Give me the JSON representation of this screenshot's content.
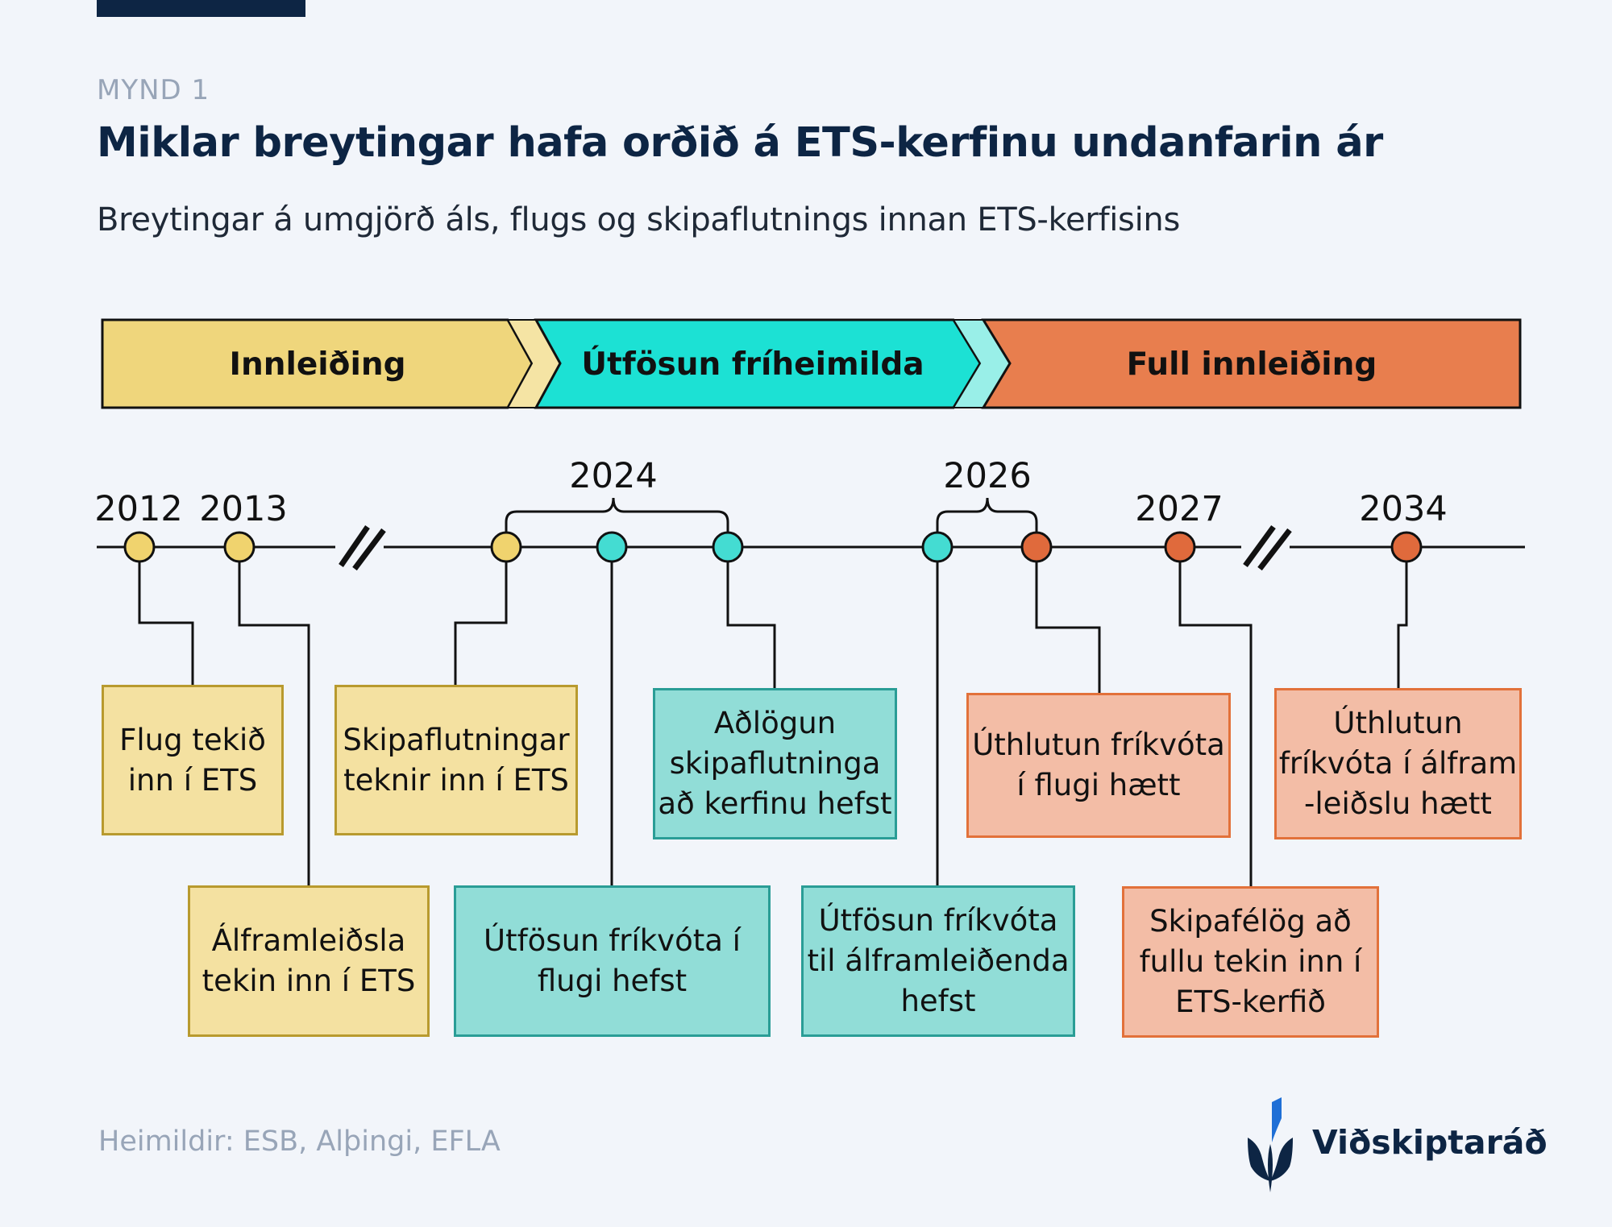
{
  "figure_label": "MYND 1",
  "title": "Miklar breytingar hafa orðið á ETS-kerfinu undanfarin ár",
  "subtitle": "Breytingar á umgjörð áls, flugs og skipaflutnings innan ETS-kerfisins",
  "phases": [
    {
      "label": "Innleiðing",
      "color": "#efd67c"
    },
    {
      "label": "Útfösun fríheimilda",
      "color": "#1ce1d4"
    },
    {
      "label": "Full innleiðing",
      "color": "#e87e4e"
    }
  ],
  "years": [
    "2012",
    "2013",
    "2024",
    "2026",
    "2027",
    "2034"
  ],
  "events": [
    {
      "text": "Flug tekið\ninn í ETS",
      "phase": "Innleiðing",
      "year": "2012"
    },
    {
      "text": "Álframleiðsla\ntekin inn í ETS",
      "phase": "Innleiðing",
      "year": "2013"
    },
    {
      "text": "Skipaflutningar\nteknir inn í ETS",
      "phase": "Innleiðing",
      "year": "2024"
    },
    {
      "text": "Útfösun fríkvóta í\nflugi hefst",
      "phase": "Útfösun fríheimilda",
      "year": "2024"
    },
    {
      "text": "Aðlögun\nskipaflutninga\nað kerfinu hefst",
      "phase": "Útfösun fríheimilda",
      "year": "2024"
    },
    {
      "text": "Útfösun fríkvóta\ntil álframleiðenda\nhefst",
      "phase": "Útfösun fríheimilda",
      "year": "2026"
    },
    {
      "text": "Úthlutun fríkvóta\ní flugi hætt",
      "phase": "Full innleiðing",
      "year": "2026"
    },
    {
      "text": "Skipafélög að\nfullu tekin inn í\nETS-kerfið",
      "phase": "Full innleiðing",
      "year": "2027"
    },
    {
      "text": "Úthlutun\nfríkvóta í álfram\n-leiðslu hætt",
      "phase": "Full innleiðing",
      "year": "2034"
    }
  ],
  "colors": {
    "navy": "#0d2544",
    "yellow_dot": "#f0d36e",
    "teal_dot": "#44dcd2",
    "orange_dot": "#e06a3c",
    "yellow_box": "#f4e1a1",
    "teal_box": "#91ddd7",
    "orange_box": "#f3bda6"
  },
  "source": "Heimildir: ESB, Alþingi, EFLA",
  "brand": "Viðskiptaráð",
  "icons": [
    "viðskiptaráð-logo-icon",
    "axis-break-icon"
  ]
}
